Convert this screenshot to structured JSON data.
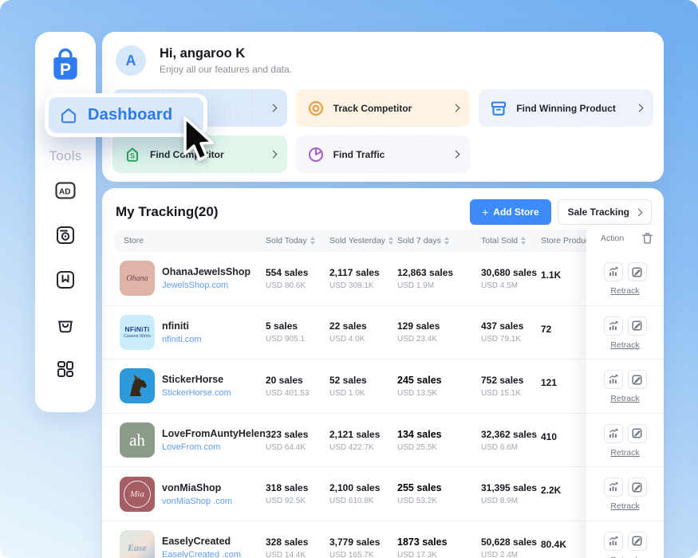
{
  "sidebar": {
    "tools_label": "Tools",
    "dashboard_label": "Dashboard",
    "icons": [
      "ad-icon",
      "snapshot-icon",
      "bookmark-icon",
      "shop-bag-icon",
      "apps-grid-icon"
    ]
  },
  "header": {
    "avatar_initial": "A",
    "greeting": "Hi, angaroo K",
    "subtitle": "Enjoy all our features and data."
  },
  "feature_cards": [
    {
      "label": "",
      "bg": "#dce9fc",
      "icon": "none"
    },
    {
      "label": "Track Competitor",
      "bg": "#fcf3e3",
      "icon": "target-icon",
      "icon_color": "#ef9d3e"
    },
    {
      "label": "Find Winning Product",
      "bg": "#eef3fa",
      "icon": "box-icon",
      "icon_color": "#2f80ed"
    },
    {
      "label": "Find Competitor",
      "bg": "#e0f6eb",
      "icon": "shop-icon",
      "icon_color": "#2aa55f"
    },
    {
      "label": "Find Traffic",
      "bg": "#f8f6fb",
      "icon": "pie-icon",
      "icon_color": "#a55fc8"
    }
  ],
  "tracking": {
    "title": "My Tracking(20)",
    "add_store_plus": "+",
    "add_store_label": "Add Store",
    "sale_tracking_label": "Sale Tracking",
    "columns": [
      "Store",
      "Sold Today",
      "Sold Yesterday",
      "Sold 7 days",
      "Total Sold",
      "Store Products",
      "Action"
    ],
    "retrack_label": "Retrack",
    "rows": [
      {
        "name": "OhanaJewelsShop",
        "domain": "JewelsShop.com",
        "avatar": {
          "bg": "#dfb3a8",
          "kind": "ohana",
          "lines": [
            "Ohana"
          ],
          "fg": "#6b4a42"
        },
        "sold_today": {
          "v": "554 sales",
          "u": "USD 80.6K"
        },
        "sold_yesterday": {
          "v": "2,117 sales",
          "u": "USD 308.1K"
        },
        "sold_7days": {
          "v": "12,863 sales",
          "u": "USD 1.9M",
          "emph": false
        },
        "total_sold": {
          "v": "30,680 sales",
          "u": "USD 4.5M"
        },
        "products": "1.1K"
      },
      {
        "name": "nfiniti",
        "domain": "nfiniti.com",
        "avatar": {
          "bg": "#c9edfa",
          "kind": "nfiniti",
          "lines": [
            "NFiNiTi",
            "Custom Shirts"
          ],
          "fg": "#1c3f94"
        },
        "sold_today": {
          "v": "5 sales",
          "u": "USD 905.1"
        },
        "sold_yesterday": {
          "v": "22 sales",
          "u": "USD 4.0K"
        },
        "sold_7days": {
          "v": "129 sales",
          "u": "USD 23.4K",
          "emph": false
        },
        "total_sold": {
          "v": "437 sales",
          "u": "USD 79.1K"
        },
        "products": "72"
      },
      {
        "name": "StickerHorse",
        "domain": "StickerHorse.com",
        "avatar": {
          "bg": "#2d9bdb",
          "kind": "horse",
          "lines": [],
          "fg": "#3a2a1c"
        },
        "sold_today": {
          "v": "20 sales",
          "u": "USD 401.53"
        },
        "sold_yesterday": {
          "v": "52 sales",
          "u": "USD 1.0K"
        },
        "sold_7days": {
          "v": "245 sales",
          "u": "USD 13.5K",
          "emph": true
        },
        "total_sold": {
          "v": "752 sales",
          "u": "USD 15.1K"
        },
        "products": "121"
      },
      {
        "name": "LoveFromAuntyHelen",
        "domain": "LoveFrom.com",
        "avatar": {
          "bg": "#8b9c89",
          "kind": "ah",
          "lines": [
            "ah"
          ],
          "fg": "#ffffff"
        },
        "sold_today": {
          "v": "323 sales",
          "u": "USD 64.4K"
        },
        "sold_yesterday": {
          "v": "2,121 sales",
          "u": "USD 422.7K"
        },
        "sold_7days": {
          "v": "134 sales",
          "u": "USD 25.5K",
          "emph": true
        },
        "total_sold": {
          "v": "32,362 sales",
          "u": "USD 6.6M"
        },
        "products": "410"
      },
      {
        "name": "vonMiaShop",
        "domain": "vonMiaShop .com",
        "avatar": {
          "bg": "#a65e66",
          "kind": "mia",
          "lines": [
            "Mia"
          ],
          "fg": "#f5e8e6"
        },
        "sold_today": {
          "v": "318 sales",
          "u": "USD 92.5K"
        },
        "sold_yesterday": {
          "v": "2,100 sales",
          "u": "USD 610.8K"
        },
        "sold_7days": {
          "v": "255 sales",
          "u": "USD 53.2K",
          "emph": true
        },
        "total_sold": {
          "v": "31,395 sales",
          "u": "USD 8.9M"
        },
        "products": "2.2K"
      },
      {
        "name": "EaselyCreated",
        "domain": "EaselyCreated .com",
        "avatar": {
          "bg": "linear-gradient(135deg,#d8ebe4,#f2e2d8 55%,#a9c0dc)",
          "kind": "ease",
          "lines": [
            "Ease"
          ],
          "fg": "#8fa9cd"
        },
        "sold_today": {
          "v": "328 sales",
          "u": "USD 14.4K"
        },
        "sold_yesterday": {
          "v": "3,779 sales",
          "u": "USD 165.7K"
        },
        "sold_7days": {
          "v": "1873 sales",
          "u": "USD 17.3K",
          "emph": true
        },
        "total_sold": {
          "v": "50,628 sales",
          "u": "USD 2.4M"
        },
        "products": "80.4K"
      }
    ]
  },
  "colors": {
    "accent_blue": "#3d8bf8",
    "link_blue": "#5f9df2",
    "dashboard_text": "#2b7bed"
  }
}
